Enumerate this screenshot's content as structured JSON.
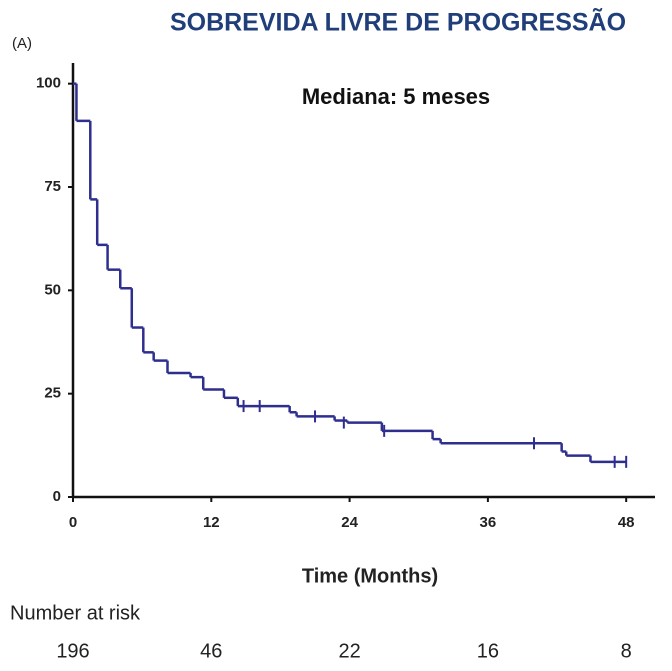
{
  "chart_data": {
    "type": "step",
    "title": "SOBREVIDA LIVRE DE PROGRESSÃO",
    "panel_label": "(A)",
    "annotation": "Mediana: 5 meses",
    "x_label": "Time (Months)",
    "color": "#2e2e8f",
    "x": [
      0,
      0.3,
      1.5,
      2.1,
      3.0,
      4.1,
      5.1,
      6.1,
      7.0,
      8.2,
      10.2,
      11.3,
      13.1,
      14.3,
      18.8,
      19.4,
      22.7,
      23.8,
      26.8,
      31.2,
      31.9,
      42.4,
      42.8,
      44.9,
      48
    ],
    "values": [
      100,
      91,
      72,
      61,
      55,
      50.5,
      41,
      35,
      33,
      30,
      29,
      26,
      24,
      22,
      20.5,
      19.5,
      18.5,
      18,
      16,
      14,
      13,
      11,
      10,
      8.5,
      8.5
    ],
    "censored": {
      "x": [
        14.8,
        16.2,
        21.0,
        23.5,
        27.0,
        40.0,
        47.0,
        48.0
      ],
      "values": [
        22,
        22,
        19.5,
        18,
        16,
        13,
        8.5,
        8.5
      ]
    },
    "xlim": [
      0,
      50.5
    ],
    "ylim": [
      0,
      105
    ],
    "xticks": [
      0,
      12,
      24,
      36,
      48
    ],
    "yticks": [
      0,
      25,
      50,
      75,
      100
    ],
    "risk": {
      "label": "Number at risk",
      "x": [
        0,
        12,
        24,
        36,
        48
      ],
      "values": [
        196,
        46,
        22,
        16,
        8
      ]
    }
  }
}
